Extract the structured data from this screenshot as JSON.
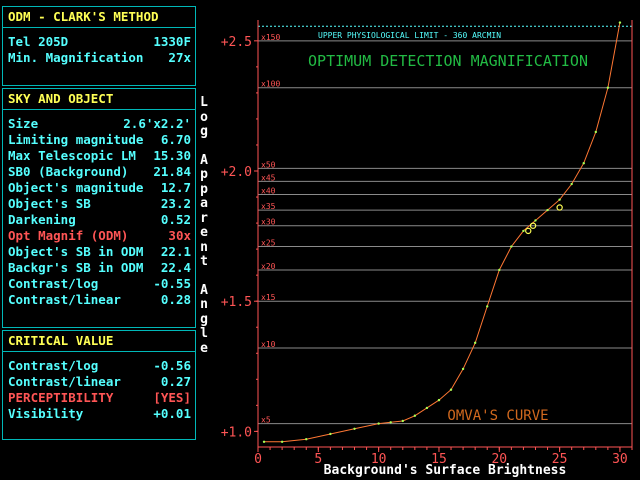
{
  "panel1": {
    "title": "ODM - CLARK'S METHOD",
    "rows": [
      {
        "label": "Tel  205D",
        "value": "1330F"
      },
      {
        "label": "Min. Magnification",
        "value": "27x"
      }
    ]
  },
  "panel2": {
    "title": "SKY AND OBJECT",
    "rows": [
      {
        "label": "Size",
        "value": "2.6'x2.2'"
      },
      {
        "label": "Limiting magnitude",
        "value": "6.70"
      },
      {
        "label": "Max Telescopic LM",
        "value": "15.30"
      },
      {
        "label": "SB0 (Background)",
        "value": "21.84"
      },
      {
        "label": "Object's magnitude",
        "value": "12.7"
      },
      {
        "label": "Object's SB",
        "value": "23.2"
      },
      {
        "label": "Darkening",
        "value": "0.52"
      },
      {
        "label": "Opt Magnif (ODM)",
        "value": "30x"
      },
      {
        "label": "Object's SB in ODM",
        "value": "22.1"
      },
      {
        "label": "Backgr's SB in ODM",
        "value": "22.4"
      },
      {
        "label": "Contrast/log",
        "value": "-0.55"
      },
      {
        "label": "Contrast/linear",
        "value": "0.28"
      }
    ]
  },
  "panel3": {
    "title": "CRITICAL VALUE",
    "rows": [
      {
        "label": "Contrast/log",
        "value": "-0.56"
      },
      {
        "label": "Contrast/linear",
        "value": "0.27"
      },
      {
        "label": "PERCEPTIBILITY",
        "value": "[YES]"
      },
      {
        "label": "Visibility",
        "value": "+0.01"
      }
    ]
  },
  "colors": {
    "cyan": "#55ffff",
    "yellow": "#ffff55",
    "red": "#ff5555",
    "curve": "#ff7733",
    "frame": "#00b8b8"
  },
  "chart_data": {
    "type": "line",
    "title": "OPTIMUM DETECTION MAGNIFICATION",
    "xlabel": "Background's Surface Brightness",
    "ylabel": "Log Apparent Angle",
    "xlim": [
      0,
      31
    ],
    "ylim": [
      0.94,
      2.58
    ],
    "x_ticks": [
      0,
      5,
      10,
      15,
      20,
      25,
      30
    ],
    "y_ticks": [
      {
        "value": 1.0,
        "label": "+1.0"
      },
      {
        "value": 1.5,
        "label": "+1.5"
      },
      {
        "value": 2.0,
        "label": "+2.0"
      },
      {
        "value": 2.5,
        "label": "+2.5"
      }
    ],
    "magnification_lines": [
      {
        "label": "x5",
        "value": 1.03
      },
      {
        "label": "x10",
        "value": 1.32
      },
      {
        "label": "x15",
        "value": 1.5
      },
      {
        "label": "x20",
        "value": 1.62
      },
      {
        "label": "x25",
        "value": 1.71
      },
      {
        "label": "x30",
        "value": 1.79
      },
      {
        "label": "x35",
        "value": 1.85
      },
      {
        "label": "x40",
        "value": 1.91
      },
      {
        "label": "x45",
        "value": 1.96
      },
      {
        "label": "x50",
        "value": 2.01
      },
      {
        "label": "x100",
        "value": 2.32
      },
      {
        "label": "x150",
        "value": 2.5
      }
    ],
    "upper_limit": {
      "label": "UPPER PHYSIOLOGICAL LIMIT - 360 ARCMIN",
      "value": 2.556
    },
    "series": [
      {
        "name": "OMVA'S CURVE",
        "x": [
          0.5,
          2,
          4,
          6,
          8,
          10,
          11,
          12,
          13,
          14,
          15,
          16,
          17,
          18,
          19,
          20,
          21,
          22,
          23,
          24,
          25,
          26,
          27,
          28,
          29,
          30
        ],
        "y": [
          0.96,
          0.96,
          0.97,
          0.99,
          1.01,
          1.03,
          1.035,
          1.04,
          1.06,
          1.09,
          1.12,
          1.16,
          1.24,
          1.34,
          1.48,
          1.62,
          1.71,
          1.77,
          1.81,
          1.85,
          1.89,
          1.95,
          2.03,
          2.15,
          2.32,
          2.57
        ]
      }
    ],
    "markers": [
      {
        "x": 22.4,
        "y": 1.77
      },
      {
        "x": 22.8,
        "y": 1.79
      },
      {
        "x": 25.0,
        "y": 1.86
      }
    ]
  }
}
